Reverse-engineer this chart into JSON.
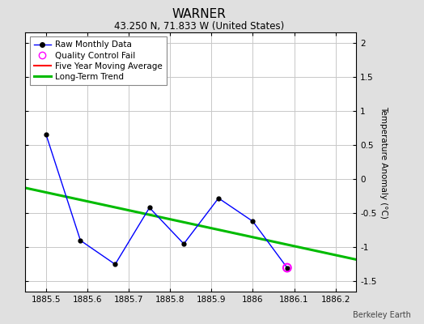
{
  "title": "WARNER",
  "subtitle": "43.250 N, 71.833 W (United States)",
  "ylabel": "Temperature Anomaly (°C)",
  "watermark": "Berkeley Earth",
  "xlim": [
    1885.45,
    1886.25
  ],
  "ylim": [
    -1.65,
    2.15
  ],
  "yticks": [
    -1.5,
    -1.0,
    -0.5,
    0.0,
    0.5,
    1.0,
    1.5,
    2.0
  ],
  "ytick_labels": [
    "-1.5",
    "-1",
    "-0.5",
    "0",
    "0.5",
    "1",
    "1.5",
    "2"
  ],
  "xticks": [
    1885.5,
    1885.6,
    1885.7,
    1885.8,
    1885.9,
    1886.0,
    1886.1,
    1886.2
  ],
  "xtick_labels": [
    "1885.5",
    "1885.6",
    "1885.7",
    "1885.8",
    "1885.9",
    "1886",
    "1886.1",
    "1886.2"
  ],
  "raw_x": [
    1885.5,
    1885.583,
    1885.667,
    1885.75,
    1885.833,
    1885.917,
    1886.0,
    1886.083
  ],
  "raw_y": [
    0.65,
    -0.9,
    -1.25,
    -0.42,
    -0.95,
    -0.28,
    -0.62,
    -1.3
  ],
  "qc_fail_x": [
    1886.083
  ],
  "qc_fail_y": [
    -1.3
  ],
  "trend_x": [
    1885.45,
    1886.25
  ],
  "trend_y": [
    -0.13,
    -1.18
  ],
  "raw_line_color": "#0000ff",
  "raw_marker_color": "#000000",
  "trend_color": "#00bb00",
  "moving_avg_color": "#ff0000",
  "qc_fail_color": "#ff00ff",
  "background_color": "#e0e0e0",
  "plot_bg_color": "#ffffff",
  "grid_color": "#c8c8c8",
  "title_fontsize": 11,
  "subtitle_fontsize": 8.5,
  "ylabel_fontsize": 7.5,
  "tick_fontsize": 7.5,
  "legend_fontsize": 7.5,
  "watermark_fontsize": 7
}
